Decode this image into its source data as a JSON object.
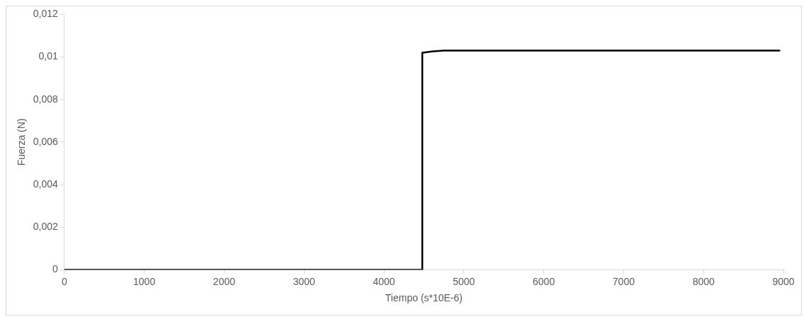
{
  "chart_data": {
    "type": "line",
    "xlabel": "Tiempo (s*10E-6)",
    "ylabel": "Fuerza (N)",
    "xlim": [
      0,
      9000
    ],
    "xticks": [
      0,
      1000,
      2000,
      3000,
      4000,
      5000,
      6000,
      7000,
      8000,
      9000
    ],
    "ylim": [
      0,
      0.012
    ],
    "yticks": [
      0,
      {
        "value": 0.002,
        "label": "0,002"
      },
      {
        "value": 0.004,
        "label": "0,004"
      },
      {
        "value": 0.006,
        "label": "0,006"
      },
      {
        "value": 0.008,
        "label": "0,008"
      },
      {
        "value": 0.01,
        "label": "0,01"
      },
      {
        "value": 0.012,
        "label": "0,012"
      }
    ],
    "series": [
      {
        "color": "#000000",
        "x": [
          0,
          4480,
          4480,
          4520,
          4600,
          4750,
          8950
        ],
        "values": [
          0,
          0,
          0.0102,
          0.01022,
          0.01026,
          0.0103,
          0.0103
        ]
      }
    ],
    "grid": false,
    "legend": false,
    "marker": "none",
    "line_style": "solid"
  }
}
